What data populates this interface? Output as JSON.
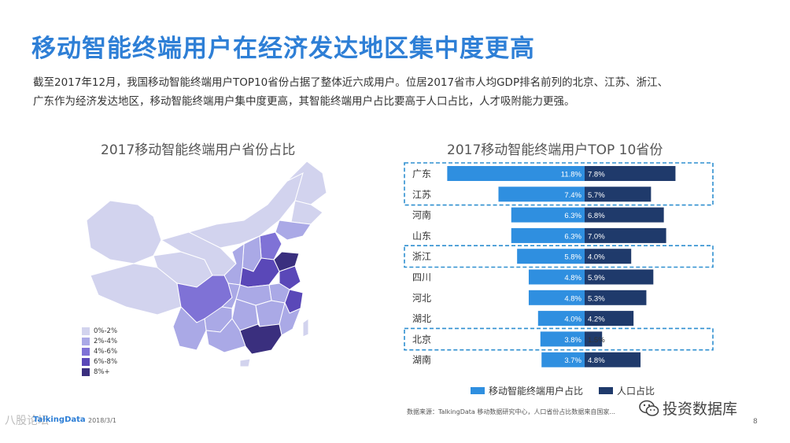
{
  "header": {
    "title": "移动智能终端用户在经济发达地区集中度更高",
    "desc_line1": "截至2017年12月，我国移动智能终端用户TOP10省份占据了整体近六成用户。位居2017省市人均GDP排名前列的北京、江苏、浙江、",
    "desc_line2": "广东作为经济发达地区，移动智能终端用户集中度更高，其智能终端用户占比要高于人口占比，人才吸附能力更强。"
  },
  "map": {
    "title": "2017移动智能终端用户省份占比",
    "legend": [
      {
        "label": "0%-2%",
        "color": "#d2d3ee"
      },
      {
        "label": "2%-4%",
        "color": "#aaa9e6"
      },
      {
        "label": "4%-6%",
        "color": "#7f72d6"
      },
      {
        "label": "6%-8%",
        "color": "#5a48b8"
      },
      {
        "label": "8%+",
        "color": "#3a2f7e"
      }
    ]
  },
  "chart_data": {
    "type": "bar",
    "title": "2017移动智能终端用户TOP 10省份",
    "categories": [
      "广东",
      "江苏",
      "河南",
      "山东",
      "浙江",
      "四川",
      "河北",
      "湖北",
      "北京",
      "湖南"
    ],
    "series": [
      {
        "name": "移动智能终端用户占比",
        "color": "#2f8fe0",
        "values": [
          11.8,
          7.4,
          6.3,
          6.3,
          5.8,
          4.8,
          4.8,
          4.0,
          3.8,
          3.7
        ],
        "labels": [
          "11.8%",
          "7.4%",
          "6.3%",
          "6.3%",
          "5.8%",
          "4.8%",
          "4.8%",
          "4.0%",
          "3.8%",
          "3.7%"
        ]
      },
      {
        "name": "人口占比",
        "color": "#1f3a6b",
        "values": [
          7.8,
          5.7,
          6.8,
          7.0,
          4.0,
          5.9,
          5.3,
          4.2,
          1.5,
          4.8
        ],
        "labels": [
          "7.8%",
          "5.7%",
          "6.8%",
          "7.0%",
          "4.0%",
          "5.9%",
          "5.3%",
          "4.2%",
          "1.5%",
          "4.8%"
        ]
      }
    ],
    "highlighted": [
      "广东",
      "江苏",
      "浙江",
      "北京"
    ],
    "legend_position": "bottom"
  },
  "footer": {
    "source": "数据来源：TalkingData 移动数据研究中心，人口省份占比数据来自国家...",
    "logo": "TalkingData",
    "date": "2018/3/1",
    "page": "8",
    "left_watermark": "八股论坛",
    "watermark": "投资数据库"
  }
}
